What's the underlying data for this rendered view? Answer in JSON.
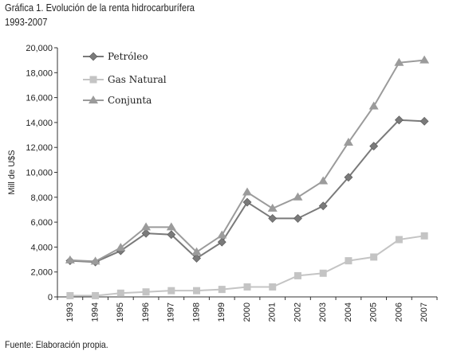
{
  "chart_data": {
    "type": "line",
    "title": "Gráfica 1. Evolución de la renta hidrocarburífera",
    "subtitle": "1993-2007",
    "ylabel": "Mill de U$S",
    "xlabel": "",
    "ylim": [
      0,
      20000
    ],
    "yticks": [
      "0",
      "2,000",
      "4,000",
      "6,000",
      "8,000",
      "10,000",
      "12,000",
      "14,000",
      "16,000",
      "18,000",
      "20,000"
    ],
    "categories": [
      "1993",
      "1994",
      "1995",
      "1996",
      "1997",
      "1998",
      "1999",
      "2000",
      "2001",
      "2002",
      "2003",
      "2004",
      "2005",
      "2006",
      "2007"
    ],
    "legend_position": "top-left",
    "grid": false,
    "series": [
      {
        "name": "Petróleo",
        "marker": "diamond",
        "color": "#7a7a7a",
        "values": [
          2900,
          2800,
          3700,
          5100,
          5000,
          3100,
          4400,
          7600,
          6300,
          6300,
          7300,
          9600,
          12100,
          14200,
          14100
        ]
      },
      {
        "name": "Gas Natural",
        "marker": "square",
        "color": "#c4c4c4",
        "values": [
          100,
          100,
          300,
          400,
          500,
          500,
          600,
          800,
          800,
          1700,
          1900,
          2900,
          3200,
          4600,
          4900
        ]
      },
      {
        "name": "Conjunta",
        "marker": "triangle",
        "color": "#9b9b9b",
        "values": [
          2950,
          2850,
          3950,
          5600,
          5600,
          3600,
          4950,
          8400,
          7100,
          8000,
          9300,
          12400,
          15300,
          18800,
          19000
        ]
      }
    ]
  },
  "source": "Fuente: Elaboración propia."
}
